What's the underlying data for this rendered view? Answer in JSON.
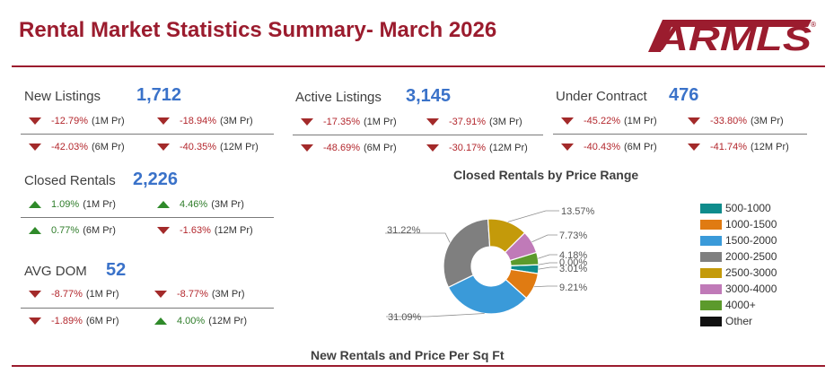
{
  "header": {
    "title": "Rental Market Statistics Summary- March 2026",
    "logo_text": "ARMLS",
    "logo_color": "#9b1c2e"
  },
  "metrics": {
    "new_listings": {
      "label": "New Listings",
      "value": "1,712",
      "changes": [
        {
          "pct": "-12.79%",
          "period": "(1M Pr)",
          "dir": "down"
        },
        {
          "pct": "-18.94%",
          "period": "(3M Pr)",
          "dir": "down"
        },
        {
          "pct": "-42.03%",
          "period": "(6M Pr)",
          "dir": "down"
        },
        {
          "pct": "-40.35%",
          "period": "(12M Pr)",
          "dir": "down"
        }
      ]
    },
    "active_listings": {
      "label": "Active Listings",
      "value": "3,145",
      "changes": [
        {
          "pct": "-17.35%",
          "period": "(1M Pr)",
          "dir": "down"
        },
        {
          "pct": "-37.91%",
          "period": "(3M Pr)",
          "dir": "down"
        },
        {
          "pct": "-48.69%",
          "period": "(6M Pr)",
          "dir": "down"
        },
        {
          "pct": "-30.17%",
          "period": "(12M Pr)",
          "dir": "down"
        }
      ]
    },
    "under_contract": {
      "label": "Under Contract",
      "value": "476",
      "changes": [
        {
          "pct": "-45.22%",
          "period": "(1M Pr)",
          "dir": "down"
        },
        {
          "pct": "-33.80%",
          "period": "(3M Pr)",
          "dir": "down"
        },
        {
          "pct": "-40.43%",
          "period": "(6M Pr)",
          "dir": "down"
        },
        {
          "pct": "-41.74%",
          "period": "(12M Pr)",
          "dir": "down"
        }
      ]
    },
    "closed_rentals": {
      "label": "Closed Rentals",
      "value": "2,226",
      "changes": [
        {
          "pct": "1.09%",
          "period": "(1M Pr)",
          "dir": "up"
        },
        {
          "pct": "4.46%",
          "period": "(3M Pr)",
          "dir": "up"
        },
        {
          "pct": "0.77%",
          "period": "(6M Pr)",
          "dir": "up"
        },
        {
          "pct": "-1.63%",
          "period": "(12M Pr)",
          "dir": "down"
        }
      ]
    },
    "avg_dom": {
      "label": "AVG DOM",
      "value": "52",
      "changes": [
        {
          "pct": "-8.77%",
          "period": "(1M Pr)",
          "dir": "down"
        },
        {
          "pct": "-8.77%",
          "period": "(3M Pr)",
          "dir": "down"
        },
        {
          "pct": "-1.89%",
          "period": "(6M Pr)",
          "dir": "down"
        },
        {
          "pct": "4.00%",
          "period": "(12M Pr)",
          "dir": "up"
        }
      ]
    }
  },
  "chart_data": {
    "type": "pie",
    "title": "Closed Rentals by Price Range",
    "donut": true,
    "slices": [
      {
        "label": "500-1000",
        "value": 3.01,
        "value_label": "3.01%",
        "color": "#0f8c8c"
      },
      {
        "label": "1000-1500",
        "value": 9.21,
        "value_label": "9.21%",
        "color": "#e07b12"
      },
      {
        "label": "1500-2000",
        "value": 31.09,
        "value_label": "31.09%",
        "color": "#3a9ad9"
      },
      {
        "label": "2000-2500",
        "value": 31.22,
        "value_label": "31.22%",
        "color": "#7f7f7f"
      },
      {
        "label": "2500-3000",
        "value": 13.57,
        "value_label": "13.57%",
        "color": "#c49a0a"
      },
      {
        "label": "3000-4000",
        "value": 7.73,
        "value_label": "7.73%",
        "color": "#c07ab8"
      },
      {
        "label": "4000+",
        "value": 4.18,
        "value_label": "4.18%",
        "color": "#5c9a2c"
      },
      {
        "label": "Other",
        "value": 0.0,
        "value_label": "0.00%",
        "color": "#111111"
      }
    ],
    "legend_position": "right"
  },
  "bottom_section": {
    "title": "New Rentals and Price Per Sq Ft"
  }
}
